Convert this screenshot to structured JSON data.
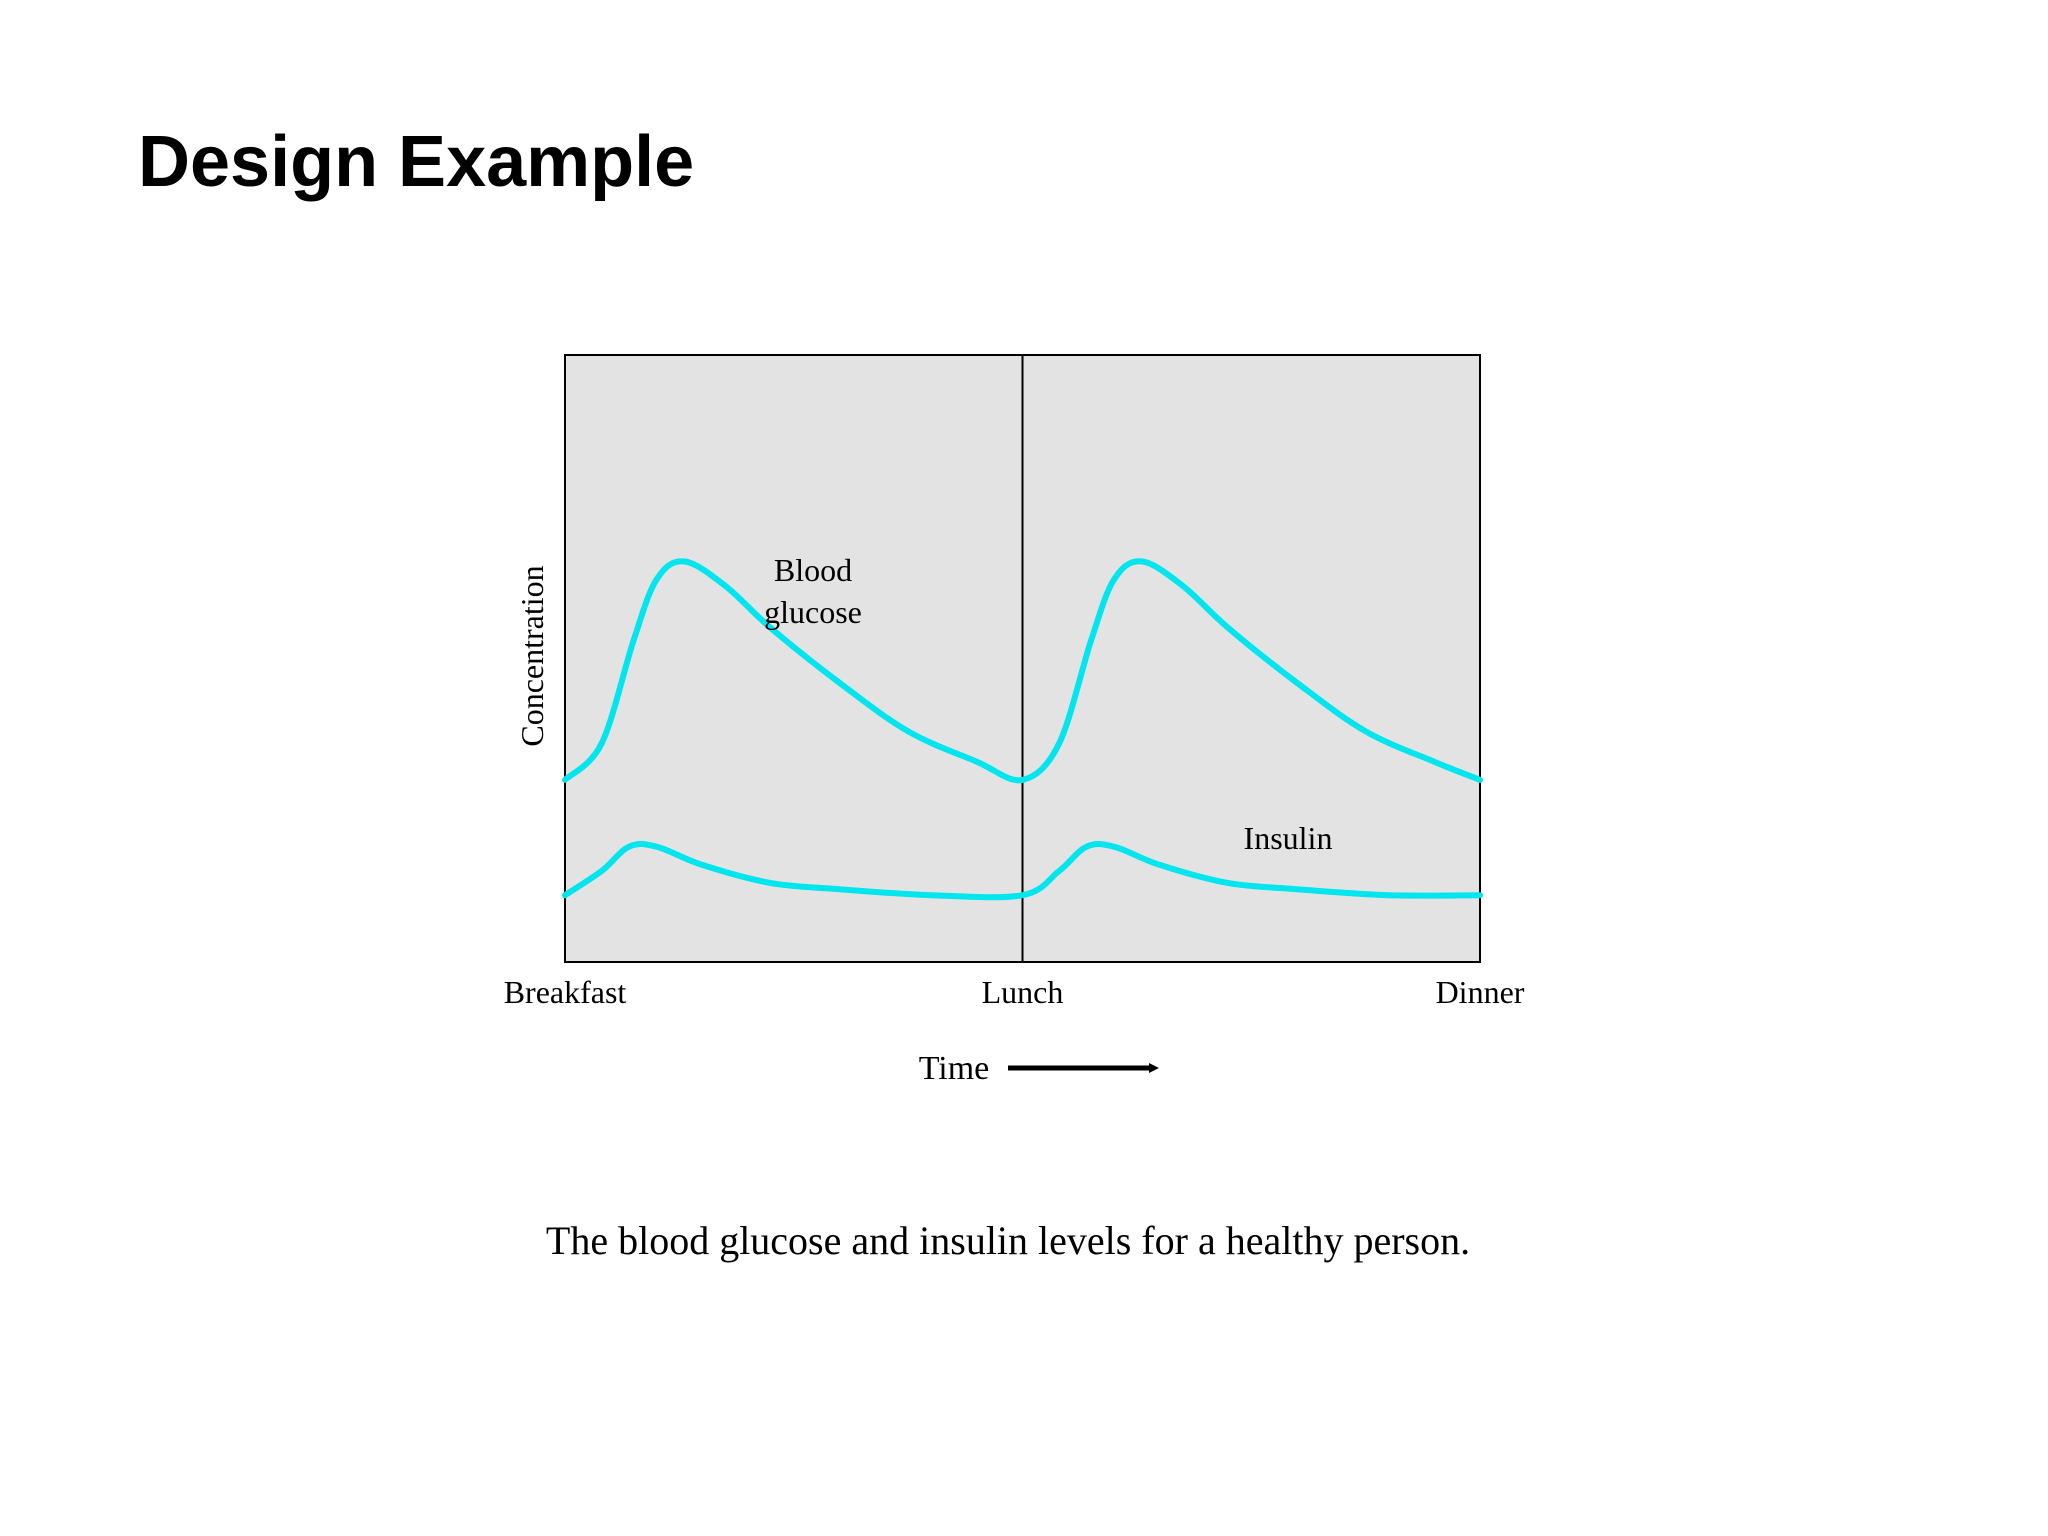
{
  "slide": {
    "title": "Design Example",
    "caption": "The blood glucose and insulin levels for a healthy person."
  },
  "chart_data": {
    "type": "line",
    "categories": [
      "Breakfast",
      "Lunch",
      "Dinner"
    ],
    "x_domain": [
      0,
      2
    ],
    "y_domain": [
      0,
      1
    ],
    "ylabel": "Concentration",
    "xlabel": "Time",
    "grid": false,
    "background_color": "#e3e3e3",
    "line_color": "#00e5ee",
    "series": [
      {
        "name": "Blood glucose",
        "label_lines": [
          "Blood",
          "glucose"
        ],
        "points": [
          [
            0.0,
            0.3
          ],
          [
            0.08,
            0.36
          ],
          [
            0.15,
            0.53
          ],
          [
            0.2,
            0.63
          ],
          [
            0.26,
            0.66
          ],
          [
            0.35,
            0.62
          ],
          [
            0.45,
            0.55
          ],
          [
            0.6,
            0.46
          ],
          [
            0.75,
            0.38
          ],
          [
            0.9,
            0.33
          ],
          [
            1.0,
            0.3
          ],
          [
            1.08,
            0.36
          ],
          [
            1.15,
            0.53
          ],
          [
            1.2,
            0.63
          ],
          [
            1.26,
            0.66
          ],
          [
            1.35,
            0.62
          ],
          [
            1.45,
            0.55
          ],
          [
            1.6,
            0.46
          ],
          [
            1.75,
            0.38
          ],
          [
            1.9,
            0.33
          ],
          [
            2.0,
            0.3
          ]
        ]
      },
      {
        "name": "Insulin",
        "label_lines": [
          "Insulin"
        ],
        "points": [
          [
            0.0,
            0.11
          ],
          [
            0.08,
            0.15
          ],
          [
            0.14,
            0.19
          ],
          [
            0.2,
            0.19
          ],
          [
            0.3,
            0.16
          ],
          [
            0.45,
            0.13
          ],
          [
            0.6,
            0.12
          ],
          [
            0.8,
            0.11
          ],
          [
            1.0,
            0.11
          ],
          [
            1.08,
            0.15
          ],
          [
            1.14,
            0.19
          ],
          [
            1.2,
            0.19
          ],
          [
            1.3,
            0.16
          ],
          [
            1.45,
            0.13
          ],
          [
            1.6,
            0.12
          ],
          [
            1.8,
            0.11
          ],
          [
            2.0,
            0.11
          ]
        ]
      }
    ],
    "divider_at": 1
  }
}
